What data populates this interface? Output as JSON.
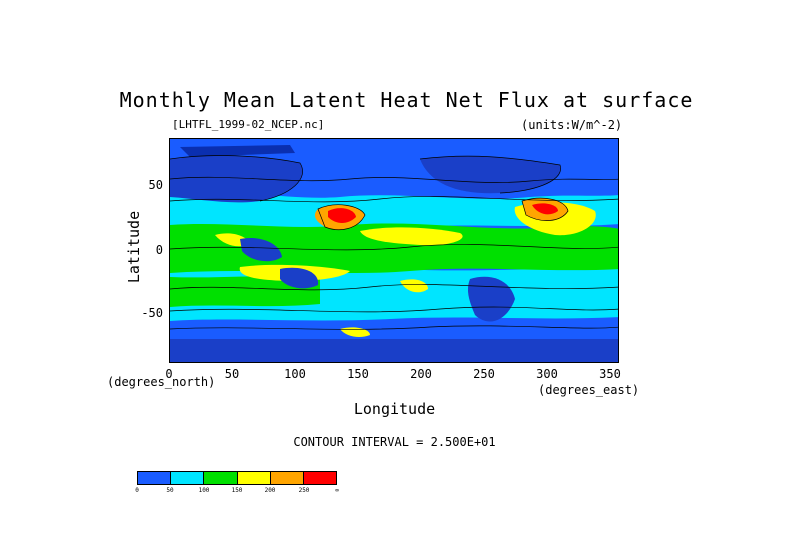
{
  "title": "Monthly Mean Latent Heat Net Flux at surface",
  "filename": "[LHTFL_1999-02_NCEP.nc]",
  "units": "(units:W/m^-2)",
  "y_axis": {
    "label": "Latitude",
    "ticks": [
      "50",
      "0",
      "-50"
    ],
    "units_note": "(degrees_north)",
    "range": [
      -90,
      90
    ]
  },
  "x_axis": {
    "label": "Longitude",
    "ticks": [
      "0",
      "50",
      "100",
      "150",
      "200",
      "250",
      "300",
      "350"
    ],
    "units_note": "(degrees_east)",
    "range": [
      0,
      360
    ]
  },
  "contour_interval": "CONTOUR INTERVAL = 2.500E+01",
  "colorbar": {
    "colors": [
      "#1a5cff",
      "#00e5ff",
      "#00e000",
      "#ffff00",
      "#ffa500",
      "#ff0000"
    ],
    "labels": [
      "0",
      "50",
      "100",
      "150",
      "200",
      "250",
      "∞"
    ]
  }
}
